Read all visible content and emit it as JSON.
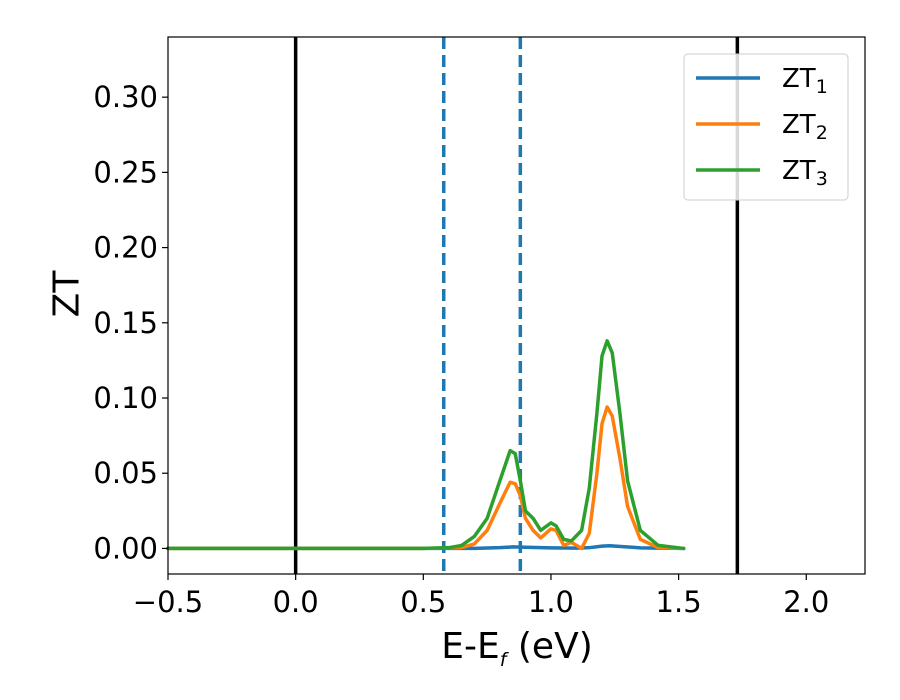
{
  "chart_data": {
    "type": "line",
    "title": "",
    "xlabel": "E-E",
    "xlabel_sub": "f",
    "xlabel_unit": " (eV)",
    "ylabel": "ZT",
    "xlim": [
      -0.5,
      2.23
    ],
    "ylim": [
      -0.017,
      0.34
    ],
    "grid": false,
    "legend_position": "top-right",
    "x_ticks": [
      -0.5,
      0.0,
      0.5,
      1.0,
      1.5,
      2.0
    ],
    "x_tick_labels": [
      "−0.5",
      "0.0",
      "0.5",
      "1.0",
      "1.5",
      "2.0"
    ],
    "y_ticks": [
      0.0,
      0.05,
      0.1,
      0.15,
      0.2,
      0.25,
      0.3
    ],
    "y_tick_labels": [
      "0.00",
      "0.05",
      "0.10",
      "0.15",
      "0.20",
      "0.25",
      "0.30"
    ],
    "vertical_lines": [
      {
        "x": 0.0,
        "style": "solid",
        "color": "#000000"
      },
      {
        "x": 1.73,
        "style": "solid",
        "color": "#000000"
      },
      {
        "x": 0.58,
        "style": "dashed",
        "color": "#1f77b4"
      },
      {
        "x": 0.88,
        "style": "dashed",
        "color": "#1f77b4"
      }
    ],
    "series": [
      {
        "name": "ZT",
        "name_sub": "1",
        "color": "#1f77b4",
        "points": [
          [
            -0.5,
            0
          ],
          [
            0.5,
            0
          ],
          [
            0.7,
            0.0
          ],
          [
            0.8,
            0.0005
          ],
          [
            0.85,
            0.001
          ],
          [
            0.9,
            0.0008
          ],
          [
            1.0,
            0.0004
          ],
          [
            1.1,
            0.0002
          ],
          [
            1.15,
            0.0005
          ],
          [
            1.2,
            0.0015
          ],
          [
            1.23,
            0.0018
          ],
          [
            1.28,
            0.0012
          ],
          [
            1.35,
            0.0004
          ],
          [
            1.45,
            0.0001
          ],
          [
            1.52,
            0
          ]
        ]
      },
      {
        "name": "ZT",
        "name_sub": "2",
        "color": "#ff7f0e",
        "points": [
          [
            -0.5,
            0
          ],
          [
            0.5,
            0
          ],
          [
            0.65,
            0.0005
          ],
          [
            0.7,
            0.003
          ],
          [
            0.75,
            0.012
          ],
          [
            0.8,
            0.03
          ],
          [
            0.84,
            0.044
          ],
          [
            0.86,
            0.043
          ],
          [
            0.88,
            0.035
          ],
          [
            0.9,
            0.02
          ],
          [
            0.93,
            0.012
          ],
          [
            0.96,
            0.007
          ],
          [
            1.0,
            0.013
          ],
          [
            1.02,
            0.012
          ],
          [
            1.05,
            0.002
          ],
          [
            1.08,
            0.004
          ],
          [
            1.12,
            0.0
          ],
          [
            1.15,
            0.01
          ],
          [
            1.18,
            0.05
          ],
          [
            1.2,
            0.083
          ],
          [
            1.22,
            0.094
          ],
          [
            1.24,
            0.088
          ],
          [
            1.27,
            0.06
          ],
          [
            1.3,
            0.028
          ],
          [
            1.35,
            0.006
          ],
          [
            1.42,
            0.0005
          ],
          [
            1.52,
            0
          ]
        ]
      },
      {
        "name": "ZT",
        "name_sub": "3",
        "color": "#2ca02c",
        "points": [
          [
            -0.5,
            0
          ],
          [
            0.5,
            0
          ],
          [
            0.6,
            0.0005
          ],
          [
            0.65,
            0.002
          ],
          [
            0.7,
            0.008
          ],
          [
            0.75,
            0.02
          ],
          [
            0.8,
            0.045
          ],
          [
            0.84,
            0.065
          ],
          [
            0.86,
            0.063
          ],
          [
            0.88,
            0.045
          ],
          [
            0.9,
            0.025
          ],
          [
            0.93,
            0.02
          ],
          [
            0.96,
            0.012
          ],
          [
            1.0,
            0.017
          ],
          [
            1.02,
            0.015
          ],
          [
            1.05,
            0.006
          ],
          [
            1.08,
            0.005
          ],
          [
            1.12,
            0.012
          ],
          [
            1.15,
            0.04
          ],
          [
            1.18,
            0.09
          ],
          [
            1.2,
            0.128
          ],
          [
            1.22,
            0.138
          ],
          [
            1.24,
            0.13
          ],
          [
            1.27,
            0.09
          ],
          [
            1.3,
            0.045
          ],
          [
            1.35,
            0.012
          ],
          [
            1.42,
            0.002
          ],
          [
            1.52,
            0
          ]
        ]
      }
    ]
  }
}
